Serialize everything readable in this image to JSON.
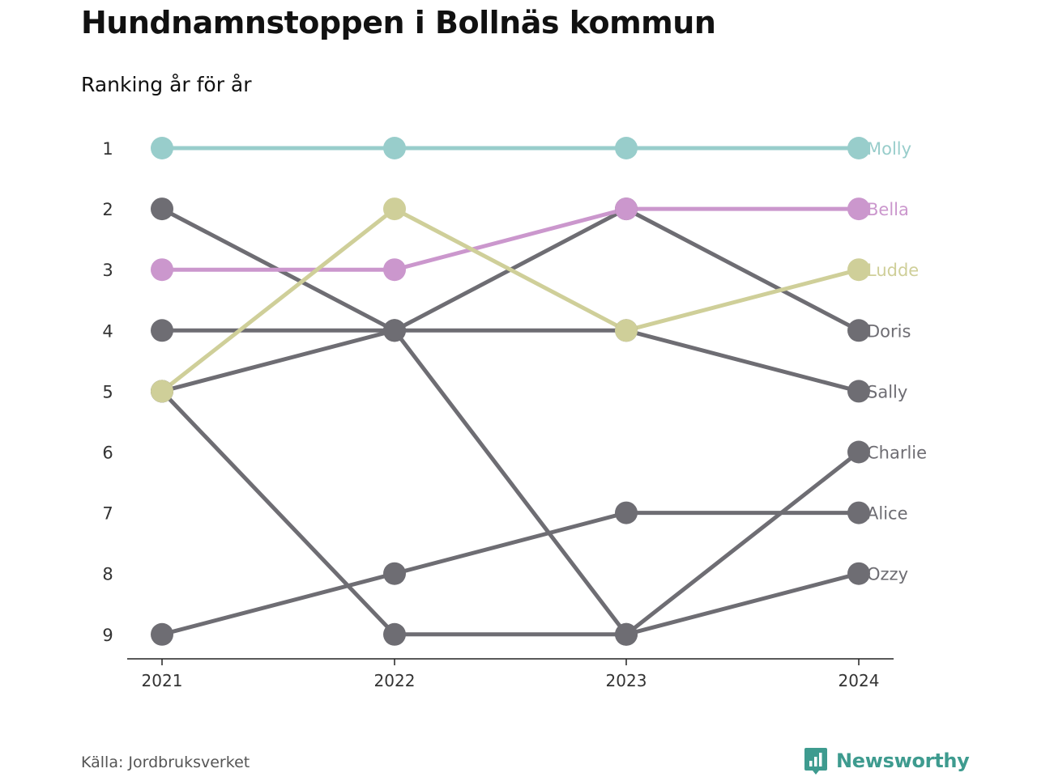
{
  "header": {
    "title": "Hundnamnstoppen i Bollnäs kommun",
    "subtitle": "Ranking år för år"
  },
  "footer": {
    "source": "Källa: Jordbruksverket",
    "brand": "Newsworthy"
  },
  "colors": {
    "highlight_teal": "#98cdcb",
    "highlight_pink": "#cb97cd",
    "highlight_olive": "#cfcf99",
    "other_gray": "#6e6d73",
    "axis": "#222222",
    "brand": "#3e9b8f"
  },
  "chart_data": {
    "type": "line",
    "title": "Hundnamnstoppen i Bollnäs kommun",
    "subtitle": "Ranking år för år",
    "x": [
      "2021",
      "2022",
      "2023",
      "2024"
    ],
    "y_ticks": [
      1,
      2,
      3,
      4,
      5,
      6,
      7,
      8,
      9
    ],
    "y_reversed": true,
    "ylim": [
      1,
      9
    ],
    "grid": false,
    "legend": "direct labels at right end of lines",
    "series": [
      {
        "name": "Molly",
        "values": [
          1,
          1,
          1,
          1
        ],
        "color": "#98cdcb"
      },
      {
        "name": "Bella",
        "values": [
          3,
          3,
          2,
          2
        ],
        "color": "#cb97cd"
      },
      {
        "name": "Ludde",
        "values": [
          5,
          2,
          4,
          3
        ],
        "color": "#cfcf99"
      },
      {
        "name": "Doris",
        "values": [
          4,
          4,
          2,
          4
        ],
        "color": "#6e6d73"
      },
      {
        "name": "Sally",
        "values": [
          2,
          4,
          4,
          5
        ],
        "color": "#6e6d73"
      },
      {
        "name": "Charlie",
        "values": [
          5,
          4,
          9,
          6
        ],
        "color": "#6e6d73"
      },
      {
        "name": "Alice",
        "values": [
          9,
          8,
          7,
          7
        ],
        "color": "#6e6d73"
      },
      {
        "name": "Ozzy",
        "values": [
          5,
          9,
          9,
          8
        ],
        "color": "#6e6d73"
      }
    ]
  }
}
